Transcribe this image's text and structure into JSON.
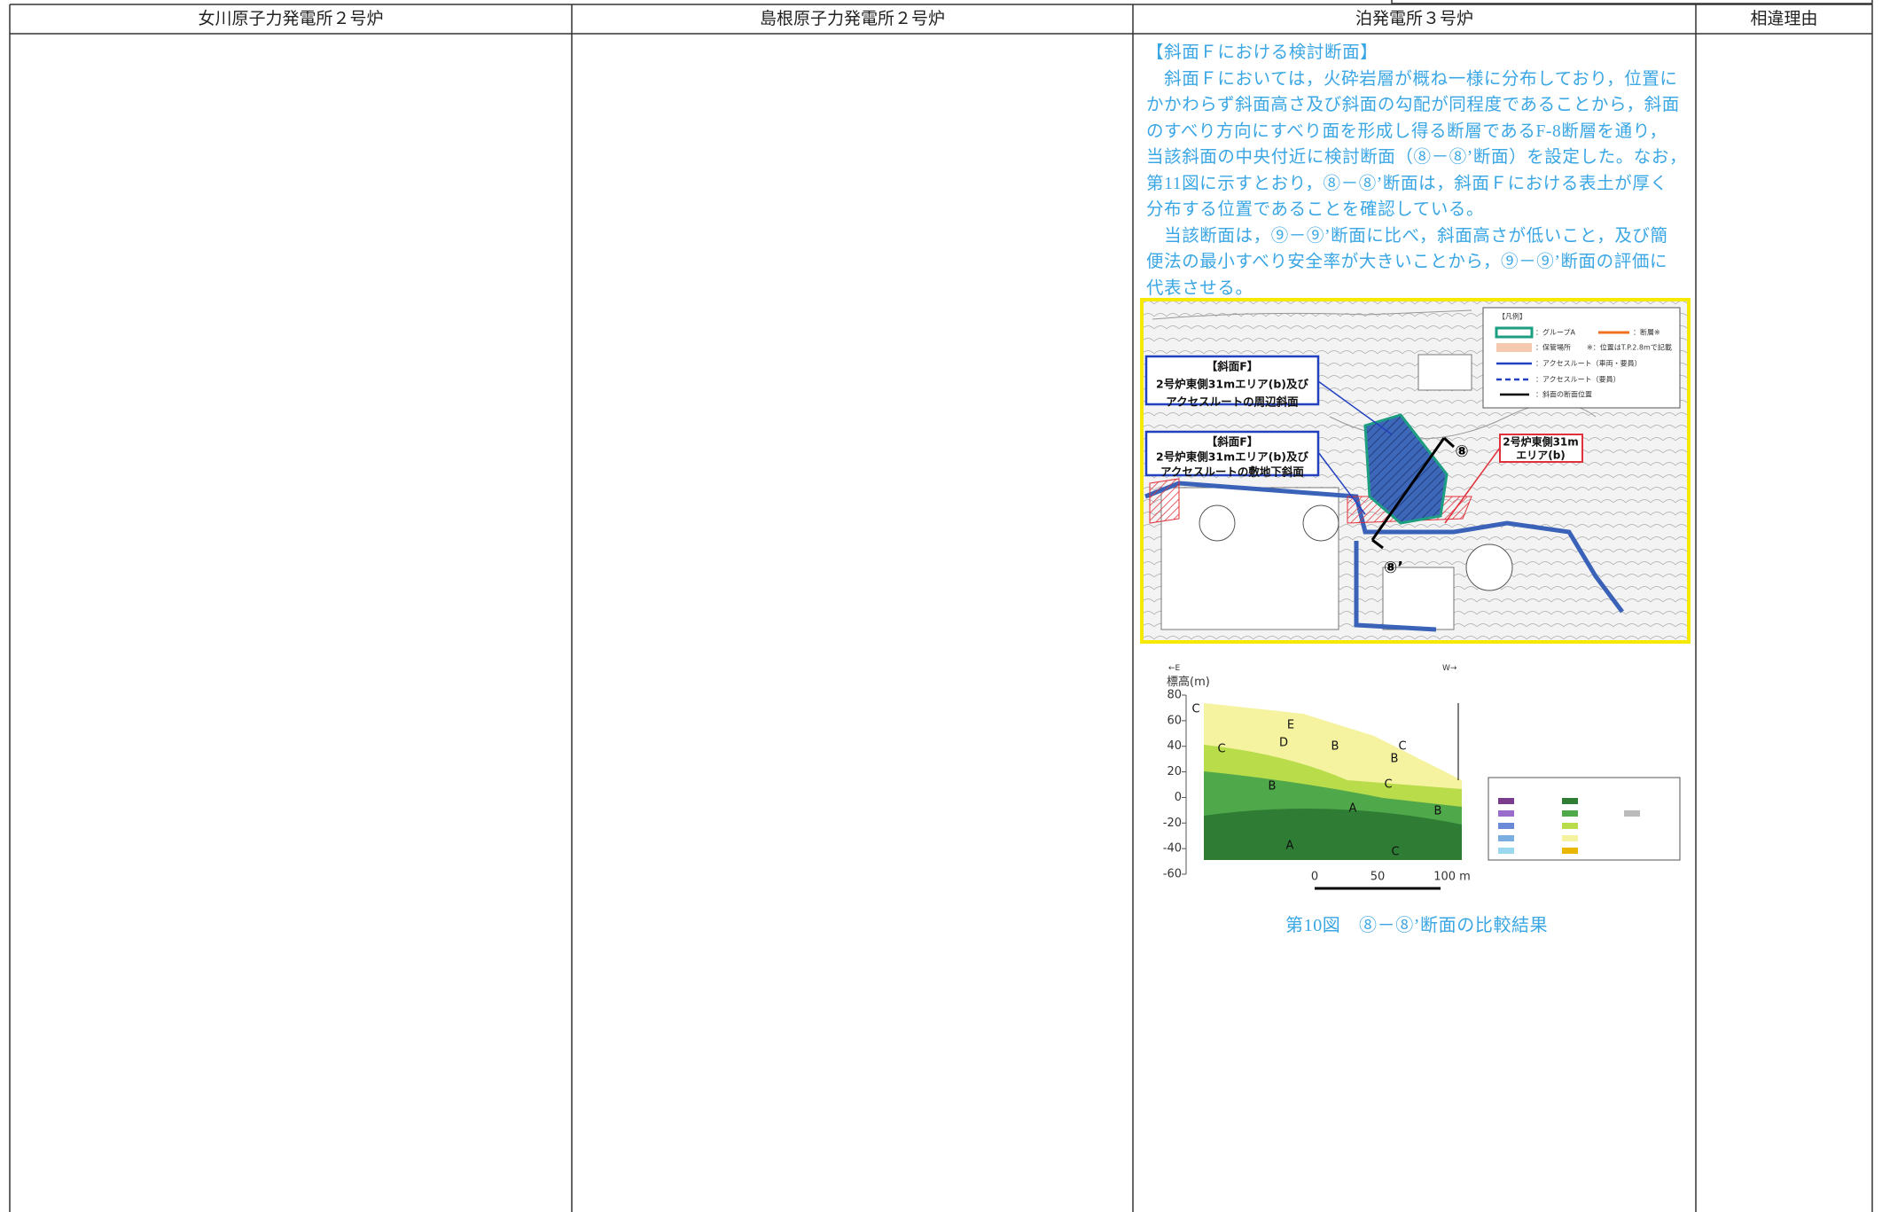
{
  "header": {
    "columns": [
      "女川原子力発電所２号炉",
      "島根原子力発電所２号炉",
      "泊発電所３号炉",
      "相違理由"
    ]
  },
  "tomari": {
    "paragraph": [
      "【斜面Ｆにおける検討断面】",
      "　斜面Ｆにおいては，火砕岩層が概ね一様に分布しており，位置に",
      "かかわらず斜面高さ及び斜面の勾配が同程度であることから，斜面",
      "のすべり方向にすべり面を形成し得る断層であるF-8断層を通り，",
      "当該斜面の中央付近に検討断面（⑧－⑧’断面）を設定した。なお，",
      "第11図に示すとおり，⑧－⑧’断面は，斜面Ｆにおける表土が厚く",
      "分布する位置であることを確認している。",
      "　当該断面は，⑨－⑨’断面に比べ，斜面高さが低いこと，及び簡",
      "便法の最小すべり安全率が大きいことから，⑨－⑨’断面の評価に",
      "代表させる。"
    ],
    "map": {
      "callouts": [
        [
          "【斜面F】",
          "2号炉東側31mエリア(b)及び",
          "アクセスルートの周辺斜面"
        ],
        [
          "【斜面F】",
          "2号炉東側31mエリア(b)及び",
          "アクセスルートの敷地下斜面"
        ],
        [
          "2号炉東側31m",
          "エリア(b)"
        ]
      ],
      "markers": [
        "⑧",
        "⑧’"
      ],
      "legend": [
        "【凡例】",
        "：グループA",
        "：断層※",
        "：保管場所",
        "※：位置はT.P.2.8mで記載",
        "：アクセスルート（車両・要員）",
        "：アクセスルート（要員）",
        "：斜面の断面位置"
      ]
    },
    "section": {
      "direction_left": "←E",
      "direction_right": "W→",
      "y_label": "標高(m)",
      "yticks": [
        80,
        60,
        40,
        20,
        0,
        -20,
        -40,
        -60
      ],
      "scale": [
        "0",
        "50",
        "100 m"
      ],
      "zones": [
        "C",
        "E",
        "D",
        "C",
        "B",
        "C",
        "B",
        "C",
        "B",
        "A",
        "B",
        "A",
        "C"
      ]
    },
    "caption": "第10図　⑧－⑧’断面の比較結果"
  }
}
